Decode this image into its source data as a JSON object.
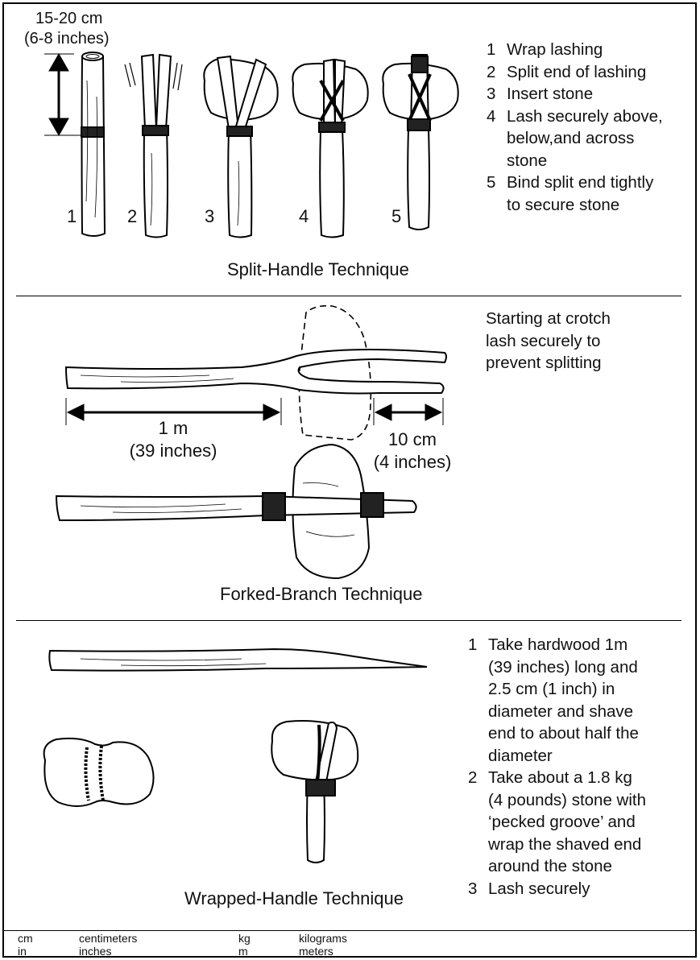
{
  "split": {
    "size_label_1": "15-20 cm",
    "size_label_2": "(6-8 inches)",
    "step_numbers": [
      "1",
      "2",
      "3",
      "4",
      "5"
    ],
    "steps": [
      {
        "num": "1",
        "text": "Wrap lashing"
      },
      {
        "num": "2",
        "text": "Split end of lashing"
      },
      {
        "num": "3",
        "text": "Insert stone"
      },
      {
        "num": "4",
        "text": "Lash securely above,\nbelow,and across\nstone"
      },
      {
        "num": "5",
        "text": "Bind split end tightly\nto secure stone"
      }
    ],
    "caption": "Split-Handle Technique"
  },
  "forked": {
    "note": "Starting at crotch\nlash securely to\nprevent splitting",
    "length_label_1": "1 m",
    "length_label_2": "(39 inches)",
    "end_label_1": "10 cm",
    "end_label_2": "(4 inches)",
    "caption": "Forked-Branch Technique"
  },
  "wrapped": {
    "steps": [
      {
        "num": "1",
        "text": "Take hardwood 1m\n(39 inches) long and\n2.5 cm (1 inch) in\ndiameter and shave\nend to about half the\ndiameter"
      },
      {
        "num": "2",
        "text": "Take about a 1.8 kg\n(4 pounds) stone with\n‘pecked groove’ and\nwrap the shaved end\naround the stone"
      },
      {
        "num": "3",
        "text": "Lash securely"
      }
    ],
    "caption": "Wrapped-Handle Technique"
  },
  "legend": [
    {
      "abbr": "cm",
      "meaning": "centimeters"
    },
    {
      "abbr": "in",
      "meaning": "inches"
    },
    {
      "abbr": "kg",
      "meaning": "kilograms"
    },
    {
      "abbr": "m",
      "meaning": "meters"
    }
  ]
}
